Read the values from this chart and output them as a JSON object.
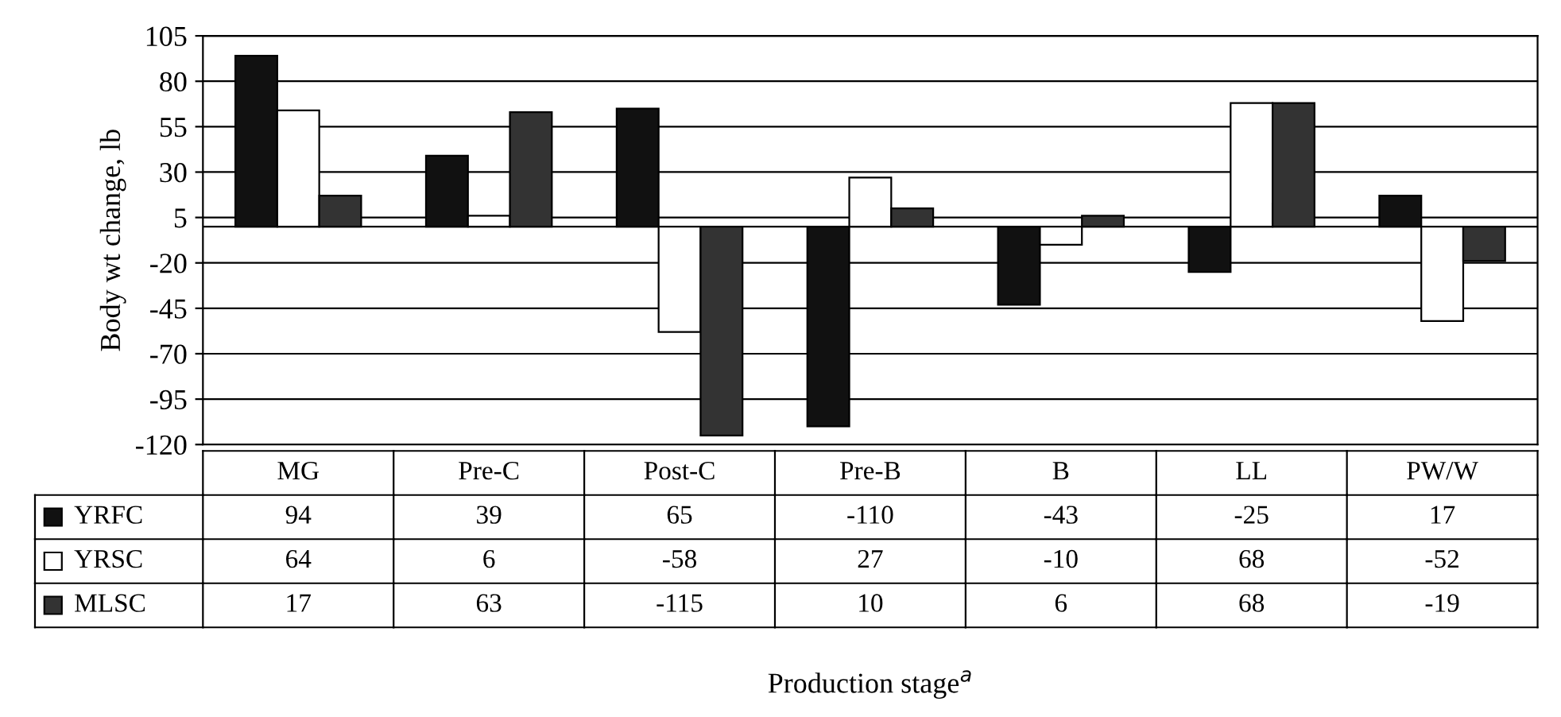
{
  "chart_data": {
    "type": "bar",
    "ylabel": "Body wt change, lb",
    "annotations": [
      "Production stage$^{a}$"
    ],
    "categories": [
      "MG",
      "Pre-C",
      "Post-C",
      "Pre-B",
      "B",
      "LL",
      "PW/W"
    ],
    "series": [
      {
        "name": "YRFC",
        "color": "#111111",
        "values": [
          94,
          39,
          65,
          -110,
          -43,
          -25,
          17
        ]
      },
      {
        "name": "YRSC",
        "color": "#ffffff",
        "values": [
          64,
          6,
          -58,
          27,
          -10,
          68,
          -52
        ]
      },
      {
        "name": "MLSC",
        "color": "#333333",
        "values": [
          17,
          63,
          -115,
          10,
          6,
          68,
          -19
        ]
      }
    ],
    "ylim": [
      -120,
      105
    ],
    "yticks": [
      -120,
      -95,
      -70,
      -45,
      -20,
      5,
      30,
      55,
      80,
      105
    ],
    "grid": "y",
    "legend": "bottom",
    "data_labels": true
  }
}
